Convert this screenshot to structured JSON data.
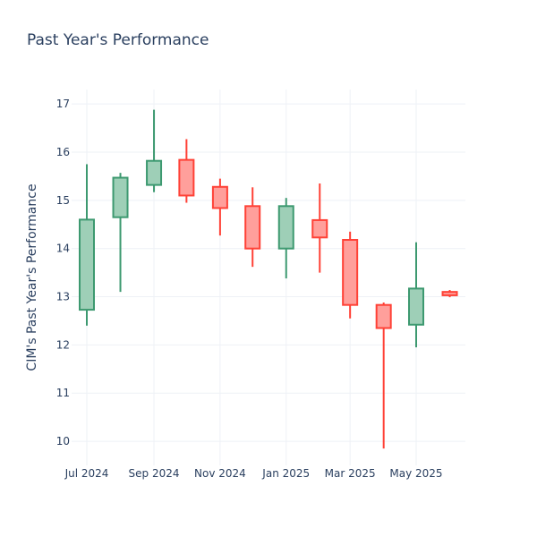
{
  "chart_data": {
    "type": "candlestick",
    "title": "Past Year's Performance",
    "xlabel": "",
    "ylabel": "CIM's Past Year's Performance",
    "ylim": [
      9.5,
      17.3
    ],
    "y_ticks": [
      10,
      11,
      12,
      13,
      14,
      15,
      16,
      17
    ],
    "x_ticks": [
      {
        "label": "Jul 2024",
        "date": "2024-07-01"
      },
      {
        "label": "Sep 2024",
        "date": "2024-09-01"
      },
      {
        "label": "Nov 2024",
        "date": "2024-11-01"
      },
      {
        "label": "Jan 2025",
        "date": "2025-01-01"
      },
      {
        "label": "Mar 2025",
        "date": "2025-03-01"
      },
      {
        "label": "May 2025",
        "date": "2025-05-01"
      }
    ],
    "grid": true,
    "colors": {
      "increasing_line": "#3d9970",
      "increasing_fill": "#9ecfb7",
      "decreasing_line": "#ff4136",
      "decreasing_fill": "#ff9f9b"
    },
    "candles": [
      {
        "date": "2024-07-01",
        "open": 12.73,
        "high": 15.75,
        "low": 12.4,
        "close": 14.6
      },
      {
        "date": "2024-08-01",
        "open": 14.65,
        "high": 15.57,
        "low": 13.1,
        "close": 15.47
      },
      {
        "date": "2024-09-01",
        "open": 15.32,
        "high": 16.88,
        "low": 15.17,
        "close": 15.82
      },
      {
        "date": "2024-10-01",
        "open": 15.84,
        "high": 16.27,
        "low": 14.95,
        "close": 15.1
      },
      {
        "date": "2024-11-01",
        "open": 15.28,
        "high": 15.45,
        "low": 14.27,
        "close": 14.84
      },
      {
        "date": "2024-12-01",
        "open": 14.88,
        "high": 15.27,
        "low": 13.62,
        "close": 14.0
      },
      {
        "date": "2025-01-01",
        "open": 14.0,
        "high": 15.05,
        "low": 13.38,
        "close": 14.88
      },
      {
        "date": "2025-02-01",
        "open": 14.59,
        "high": 15.35,
        "low": 13.5,
        "close": 14.23
      },
      {
        "date": "2025-03-01",
        "open": 14.18,
        "high": 14.35,
        "low": 12.55,
        "close": 12.83
      },
      {
        "date": "2025-04-01",
        "open": 12.83,
        "high": 12.88,
        "low": 9.85,
        "close": 12.35
      },
      {
        "date": "2025-05-01",
        "open": 12.42,
        "high": 14.13,
        "low": 11.95,
        "close": 13.17
      },
      {
        "date": "2025-06-01",
        "open": 13.1,
        "high": 13.14,
        "low": 12.99,
        "close": 13.03
      }
    ]
  }
}
